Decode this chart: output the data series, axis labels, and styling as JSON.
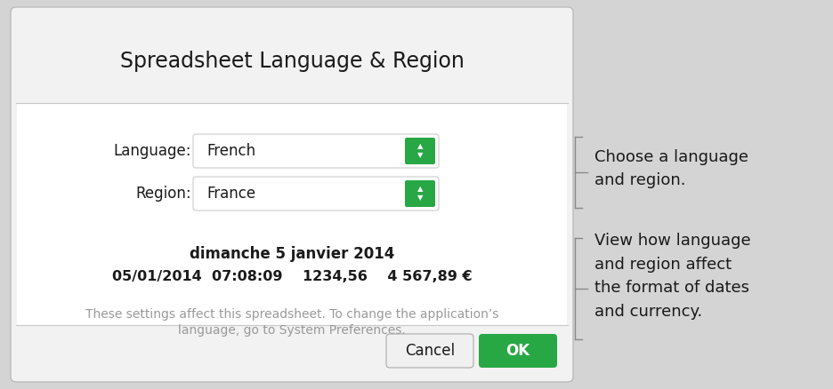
{
  "title": "Spreadsheet Language & Region",
  "bg_color": "#d4d4d4",
  "dialog_bg": "#f2f2f2",
  "dialog_inner_bg": "#ffffff",
  "language_label": "Language:",
  "language_value": "French",
  "region_label": "Region:",
  "region_value": "France",
  "date_long": "dimanche 5 janvier 2014",
  "date_short_line": "05/01/2014  07:08:09    1234,56    4 567,89 €",
  "note_line1": "These settings affect this spreadsheet. To change the application’s",
  "note_line2": "language, go to System Preferences.",
  "cancel_btn": "Cancel",
  "ok_btn": "OK",
  "green_color": "#28a745",
  "annotation1": "Choose a language\nand region.",
  "annotation2": "View how language\nand region affect\nthe format of dates\nand currency.",
  "divider_color": "#c8c8c8",
  "note_color": "#999999",
  "text_color": "#1a1a1a",
  "border_color": "#bbbbbb"
}
